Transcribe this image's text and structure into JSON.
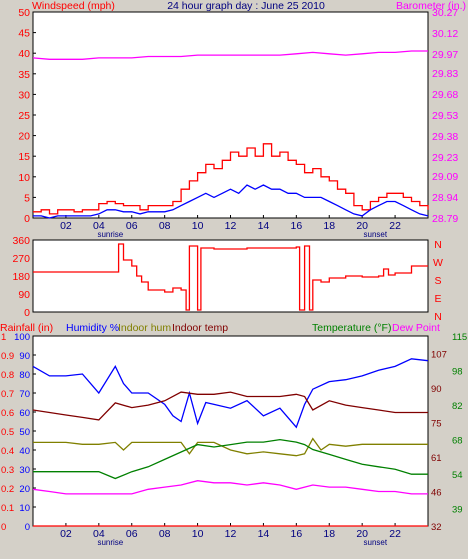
{
  "colors": {
    "background": "#d4d0c8",
    "plot": "#ffffff",
    "windspeed": "#ff0000",
    "gust": "#0000ff",
    "barometer": "#ff00ff",
    "direction": "#ff0000",
    "rainfall": "#ff0000",
    "humidity": "#0000ff",
    "indoor_hum": "#808000",
    "indoor_temp": "#800000",
    "temperature": "#008000",
    "dew_point": "#ff00ff",
    "axis_text": "#000080",
    "title_text": "#000080"
  },
  "chart_data": [
    {
      "type": "line",
      "title": "24 hour graph day : June 25 2010",
      "left_axis": {
        "label": "Windspeed (mph)",
        "ticks": [
          "0",
          "5",
          "10",
          "15",
          "20",
          "25",
          "30",
          "35",
          "40",
          "45",
          "50"
        ],
        "range": [
          0,
          50
        ]
      },
      "right_axis": {
        "label": "Barometer (in.)",
        "ticks": [
          "28.79",
          "28.94",
          "29.09",
          "29.23",
          "29.38",
          "29.53",
          "29.68",
          "29.83",
          "29.97",
          "30.12",
          "30.27"
        ],
        "range": [
          28.79,
          30.27
        ]
      },
      "x_ticks": [
        "02",
        "04",
        "06",
        "08",
        "10",
        "12",
        "14",
        "16",
        "18",
        "20",
        "22"
      ],
      "x_annotations": [
        "sunrise",
        "sunset"
      ],
      "x_range": [
        0,
        24
      ],
      "series": [
        {
          "name": "Windspeed",
          "axis": "left",
          "x": [
            0,
            0.5,
            1,
            1.5,
            2,
            2.5,
            3,
            3.5,
            4,
            4.5,
            5,
            5.5,
            6,
            6.5,
            7,
            7.5,
            8,
            8.5,
            9,
            9.5,
            10,
            10.5,
            11,
            11.5,
            12,
            12.5,
            13,
            13.5,
            14,
            14.5,
            15,
            15.5,
            16,
            16.5,
            17,
            17.5,
            18,
            18.5,
            19,
            19.5,
            20,
            20.5,
            21,
            21.5,
            22,
            22.5,
            23,
            23.5,
            24
          ],
          "values": [
            1.5,
            2,
            1,
            2,
            2,
            1.5,
            2,
            2,
            3.5,
            4,
            3.5,
            3,
            3,
            2,
            3,
            3,
            3,
            4,
            7,
            9,
            11,
            13,
            12,
            14,
            16,
            15,
            17,
            15,
            18,
            15,
            16,
            14,
            13,
            11,
            12,
            10,
            9,
            7,
            6,
            3,
            2,
            4,
            5,
            6,
            6,
            5,
            4,
            3,
            2
          ]
        },
        {
          "name": "Gust",
          "axis": "left",
          "x": [
            0,
            0.5,
            1,
            1.5,
            2,
            2.5,
            3,
            3.5,
            4,
            4.5,
            5,
            5.5,
            6,
            6.5,
            7,
            7.5,
            8,
            8.5,
            9,
            9.5,
            10,
            10.5,
            11,
            11.5,
            12,
            12.5,
            13,
            13.5,
            14,
            14.5,
            15,
            15.5,
            16,
            16.5,
            17,
            17.5,
            18,
            18.5,
            19,
            19.5,
            20,
            20.5,
            21,
            21.5,
            22,
            22.5,
            23,
            23.5,
            24
          ],
          "values": [
            0.5,
            0.5,
            0,
            0.5,
            0.5,
            0.5,
            0.5,
            0.5,
            1,
            2,
            2,
            1.5,
            1.5,
            1,
            1.5,
            1.5,
            1.5,
            2,
            3,
            4,
            5,
            6,
            5,
            6,
            7,
            6,
            8,
            7,
            8,
            7,
            7,
            6,
            6,
            5,
            5,
            5,
            4,
            3,
            2,
            1,
            0.5,
            2,
            3,
            4,
            4,
            3,
            2,
            1,
            0.5
          ]
        },
        {
          "name": "Barometer",
          "axis": "right",
          "x": [
            0,
            1,
            2,
            3,
            4,
            5,
            6,
            7,
            8,
            9,
            10,
            11,
            12,
            13,
            14,
            15,
            16,
            17,
            18,
            19,
            20,
            21,
            22,
            23,
            24
          ],
          "values": [
            29.94,
            29.93,
            29.93,
            29.93,
            29.94,
            29.94,
            29.94,
            29.95,
            29.95,
            29.95,
            29.96,
            29.96,
            29.96,
            29.96,
            29.96,
            29.96,
            29.97,
            29.98,
            29.97,
            29.96,
            29.97,
            29.98,
            29.98,
            29.99,
            29.99
          ]
        }
      ]
    },
    {
      "type": "line",
      "title": "",
      "left_axis": {
        "label": "",
        "ticks": [
          "0",
          "90",
          "180",
          "270",
          "360"
        ],
        "range": [
          0,
          360
        ]
      },
      "right_axis": {
        "label": "",
        "ticks": [
          "N",
          "W",
          "S",
          "E",
          "N"
        ]
      },
      "x_range": [
        0,
        24
      ],
      "series": [
        {
          "name": "Wind direction",
          "axis": "left",
          "x": [
            0,
            1,
            2,
            3,
            4,
            5,
            5.2,
            5.5,
            6,
            6.3,
            6.6,
            7,
            7.5,
            8,
            8.5,
            9,
            9.3,
            9.5,
            9.7,
            10,
            10.2,
            10.5,
            11,
            12,
            13,
            14,
            15,
            16,
            16.2,
            16.5,
            16.8,
            17,
            17.5,
            18,
            19,
            20,
            21,
            21.3,
            21.6,
            22,
            23,
            24
          ],
          "values": [
            200,
            200,
            200,
            200,
            200,
            200,
            340,
            260,
            230,
            180,
            150,
            110,
            110,
            100,
            120,
            110,
            10,
            330,
            330,
            10,
            320,
            320,
            315,
            315,
            320,
            320,
            320,
            325,
            10,
            330,
            10,
            160,
            150,
            170,
            180,
            175,
            180,
            215,
            185,
            195,
            230,
            230
          ]
        }
      ]
    },
    {
      "type": "line",
      "title": "",
      "legend": [
        "Rainfall (in)",
        "Humidity %",
        "Indoor hum",
        "Indoor temp",
        "Temperature (°F)",
        "Dew Point"
      ],
      "left_axis_rain": {
        "label": "Rainfall (in)",
        "ticks": [
          "0",
          "0.1",
          "0.2",
          "0.3",
          "0.4",
          "0.5",
          "0.6",
          "0.7",
          "0.8",
          "0.9",
          "1"
        ],
        "range": [
          0,
          1
        ]
      },
      "left_axis_hum": {
        "label": "Humidity %",
        "ticks": [
          "0",
          "10",
          "20",
          "30",
          "40",
          "50",
          "60",
          "70",
          "80",
          "90",
          "100"
        ],
        "range": [
          0,
          100
        ]
      },
      "right_axis": {
        "label": "Temperature (°F)",
        "ticks": [
          "32",
          "39",
          "46",
          "54",
          "61",
          "68",
          "75",
          "82",
          "90",
          "98",
          "107",
          "115"
        ],
        "values": [
          32,
          39,
          46,
          54,
          61,
          68,
          75,
          82,
          90,
          98,
          107,
          115
        ]
      },
      "x_ticks": [
        "02",
        "04",
        "06",
        "08",
        "10",
        "12",
        "14",
        "16",
        "18",
        "20",
        "22"
      ],
      "x_annotations": [
        "sunrise",
        "sunset"
      ],
      "x_range": [
        0,
        24
      ],
      "series": [
        {
          "name": "Rainfall",
          "axis": "rain",
          "x": [
            0,
            24
          ],
          "values": [
            0,
            0
          ]
        },
        {
          "name": "Humidity",
          "axis": "hum",
          "x": [
            0,
            1,
            2,
            3,
            4,
            5,
            5.5,
            6,
            7,
            8,
            8.5,
            9,
            9.5,
            10,
            10.5,
            11,
            12,
            13,
            14,
            15,
            16,
            16.5,
            17,
            18,
            19,
            20,
            21,
            22,
            23,
            24
          ],
          "values": [
            84,
            79,
            79,
            80,
            70,
            84,
            75,
            70,
            70,
            64,
            58,
            55,
            70,
            54,
            65,
            64,
            62,
            66,
            58,
            62,
            52,
            64,
            72,
            76,
            77,
            79,
            82,
            84,
            88,
            87
          ]
        },
        {
          "name": "Indoor hum",
          "axis": "hum",
          "x": [
            0,
            1,
            2,
            3,
            4,
            5,
            5.5,
            6,
            7,
            8,
            9,
            9.5,
            10,
            11,
            12,
            13,
            14,
            15,
            16,
            16.5,
            17,
            17.5,
            18,
            19,
            20,
            21,
            22,
            23,
            24
          ],
          "values": [
            44,
            44,
            44,
            43,
            43,
            44,
            40,
            44,
            44,
            44,
            44,
            38,
            44,
            44,
            40,
            38,
            39,
            38,
            37,
            38,
            46,
            40,
            43,
            42,
            43,
            43,
            43,
            43,
            43
          ]
        },
        {
          "name": "Indoor temp",
          "axis": "temp",
          "x": [
            0,
            1,
            2,
            3,
            4,
            5,
            6,
            7,
            8,
            9,
            10,
            11,
            12,
            13,
            14,
            15,
            16,
            16.5,
            17,
            18,
            19,
            20,
            21,
            22,
            23,
            24
          ],
          "values": [
            80,
            79,
            78,
            77,
            76,
            83,
            81,
            82,
            84,
            88,
            87,
            87,
            88,
            86,
            86,
            86,
            87,
            86,
            80,
            84,
            82,
            81,
            80,
            79,
            79,
            79
          ]
        },
        {
          "name": "Temperature",
          "axis": "temp",
          "x": [
            0,
            1,
            2,
            3,
            4,
            5,
            6,
            7,
            8,
            9,
            10,
            11,
            12,
            13,
            14,
            15,
            16,
            16.5,
            17,
            18,
            19,
            20,
            21,
            22,
            23,
            24
          ],
          "values": [
            55,
            55,
            55,
            55,
            55,
            52,
            55,
            57,
            60,
            63,
            66,
            65,
            66,
            67,
            67,
            68,
            67,
            66,
            64,
            62,
            60,
            58,
            57,
            56,
            54,
            54
          ]
        },
        {
          "name": "Dew Point",
          "axis": "temp",
          "x": [
            0,
            1,
            2,
            3,
            4,
            5,
            6,
            7,
            8,
            9,
            10,
            11,
            12,
            13,
            14,
            15,
            16,
            17,
            18,
            19,
            20,
            21,
            22,
            23,
            24
          ],
          "values": [
            47,
            46,
            45,
            45,
            45,
            45,
            45,
            47,
            48,
            49,
            51,
            50,
            50,
            49,
            50,
            49,
            47,
            49,
            48,
            48,
            47,
            46,
            46,
            45,
            45
          ]
        }
      ]
    }
  ]
}
